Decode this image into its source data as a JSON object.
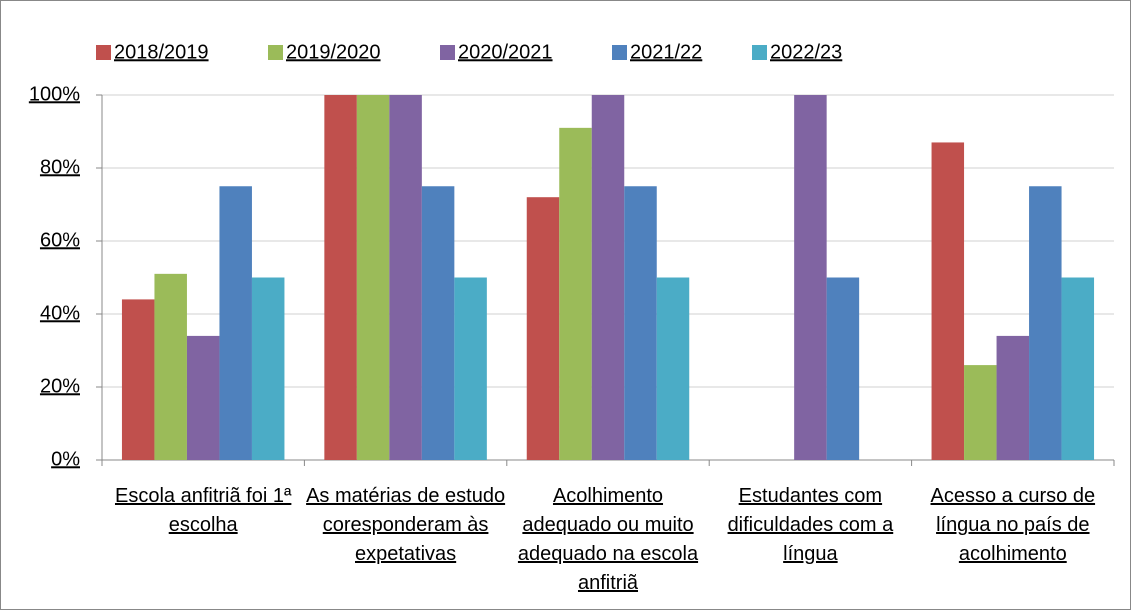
{
  "chart_data": {
    "type": "bar",
    "categories": [
      "Escola anfitriã foi 1ª escolha",
      "As matérias de estudo coresponderam às expetativas",
      "Acolhimento adequado ou muito adequado na escola anfitriã",
      "Estudantes com dificuldades com a língua",
      "Acesso a curso de língua no país de acolhimento"
    ],
    "series": [
      {
        "name": "2018/2019",
        "color": "#c0504d",
        "values": [
          44,
          100,
          72,
          null,
          87
        ]
      },
      {
        "name": "2019/2020",
        "color": "#9bbb59",
        "values": [
          51,
          100,
          91,
          null,
          26
        ]
      },
      {
        "name": "2020/2021",
        "color": "#8064a2",
        "values": [
          34,
          100,
          100,
          100,
          34
        ]
      },
      {
        "name": "2021/22",
        "color": "#4f81bd",
        "values": [
          75,
          75,
          75,
          50,
          75
        ]
      },
      {
        "name": "2022/23",
        "color": "#4bacc6",
        "values": [
          50,
          50,
          50,
          null,
          50
        ]
      }
    ],
    "ylim": [
      0,
      100
    ],
    "yticks": [
      {
        "value": 0,
        "label": "0%"
      },
      {
        "value": 20,
        "label": "20%"
      },
      {
        "value": 40,
        "label": "40%"
      },
      {
        "value": 60,
        "label": "60%"
      },
      {
        "value": 80,
        "label": "80%"
      },
      {
        "value": 100,
        "label": "100%"
      }
    ],
    "grid": true,
    "legend": "top"
  }
}
